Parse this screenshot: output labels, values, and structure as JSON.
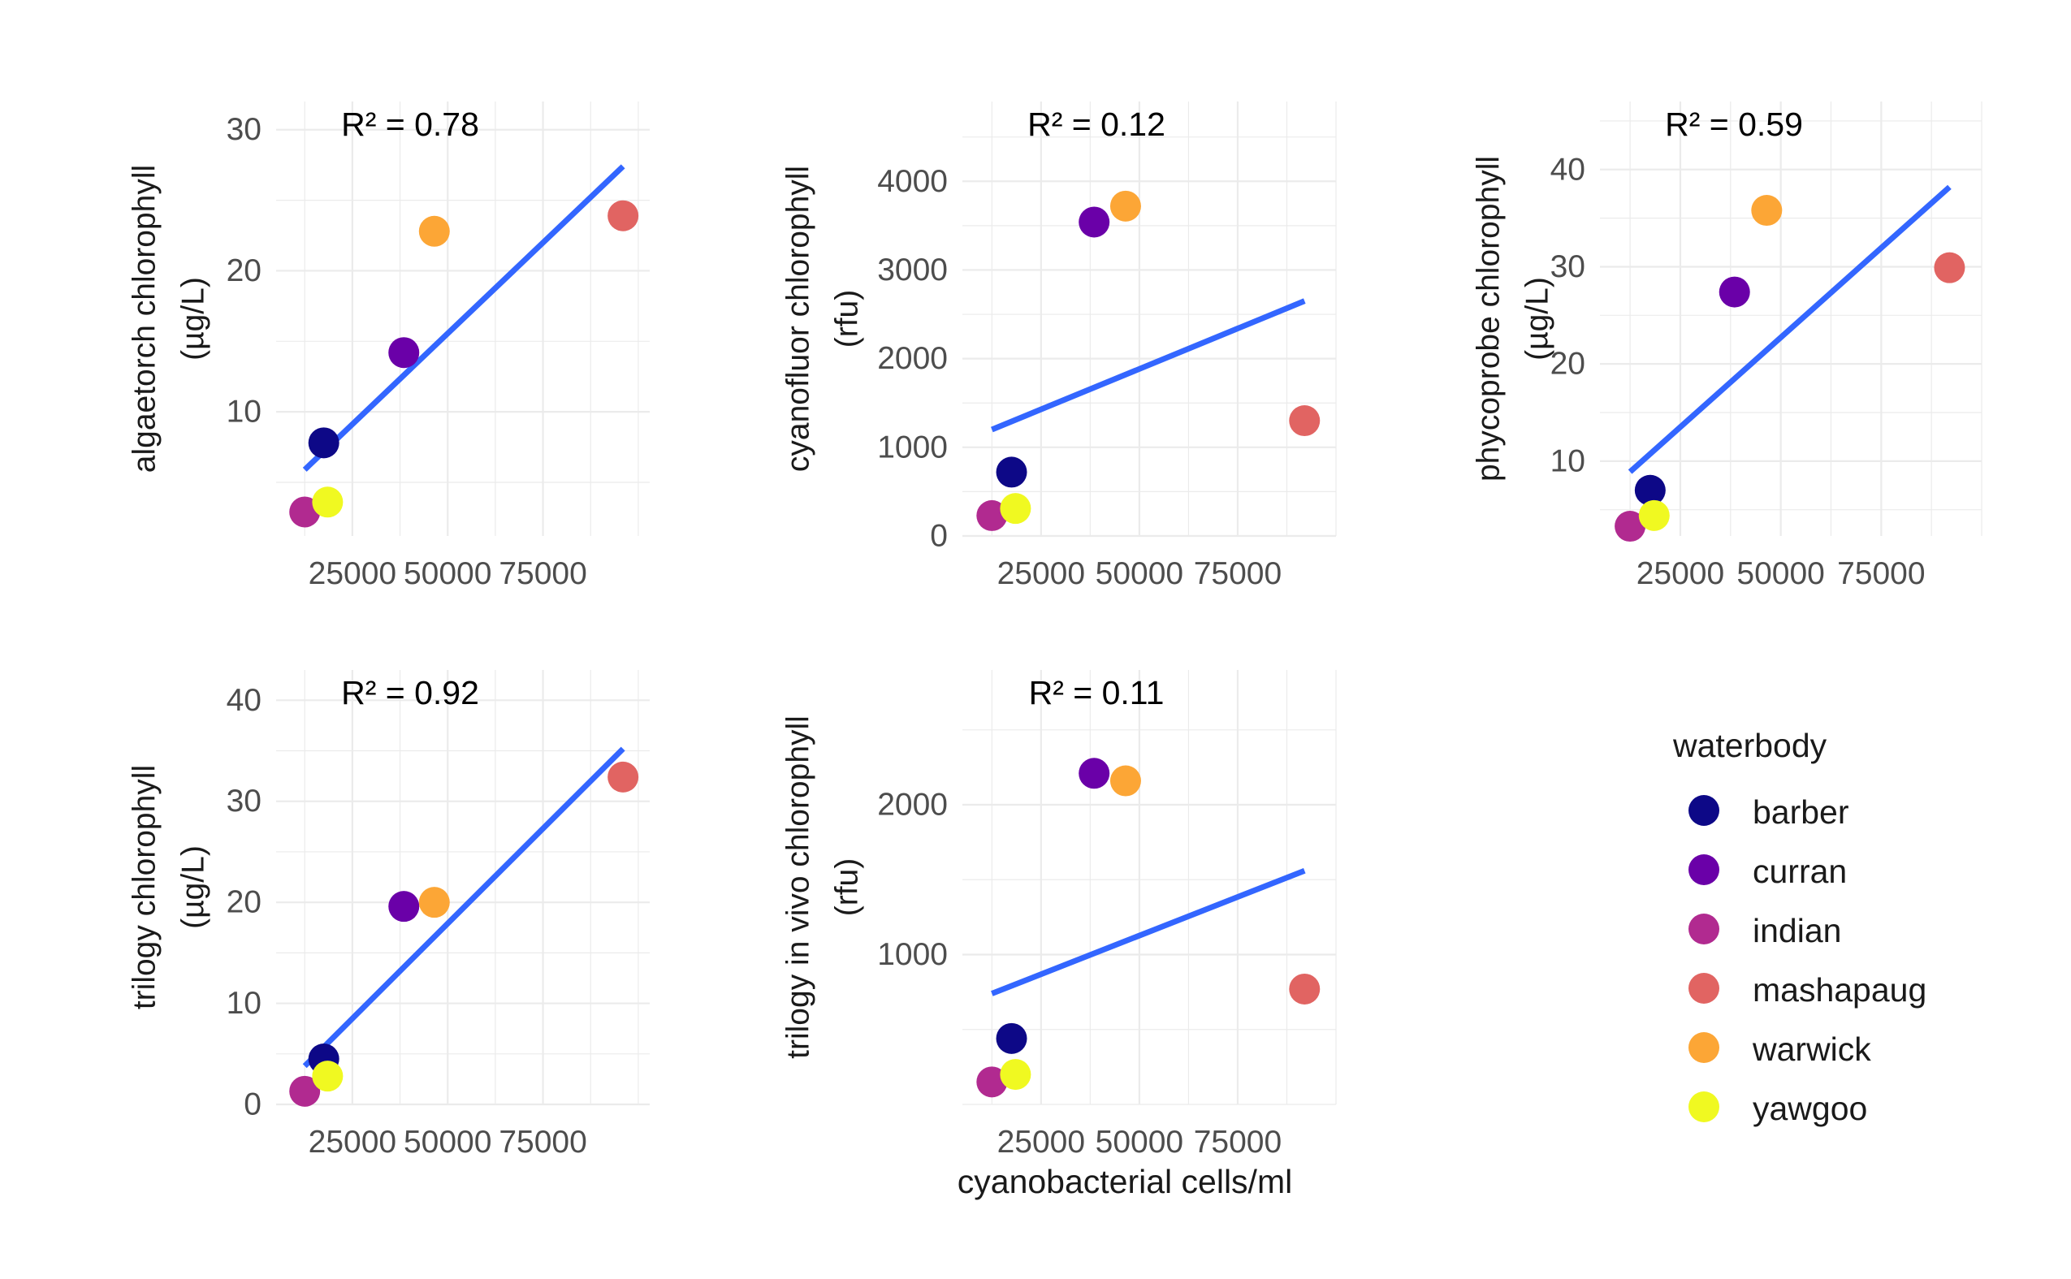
{
  "x_axis_label": "cyanobacterial cells/ml",
  "legend": {
    "title": "waterbody",
    "entries": [
      {
        "name": "barber",
        "color": "#0D0887"
      },
      {
        "name": "curran",
        "color": "#6A00A8"
      },
      {
        "name": "indian",
        "color": "#B12A90"
      },
      {
        "name": "mashapaug",
        "color": "#E16462"
      },
      {
        "name": "warwick",
        "color": "#FCA636"
      },
      {
        "name": "yawgoo",
        "color": "#F0F921"
      }
    ]
  },
  "fit_line_color": "#3366FF",
  "chart_data": [
    {
      "type": "scatter",
      "ylabel": [
        "algaetorch chlorophyll",
        "(µg/L)"
      ],
      "annotation": "R² = 0.78",
      "xlim": [
        5000,
        103000
      ],
      "ylim": [
        1.2,
        32
      ],
      "xticks": [
        25000,
        50000,
        75000
      ],
      "yticks": [
        10,
        20,
        30
      ],
      "points": [
        {
          "group": "barber",
          "x": 17500,
          "y": 7.8
        },
        {
          "group": "curran",
          "x": 38500,
          "y": 14.2
        },
        {
          "group": "indian",
          "x": 12500,
          "y": 2.9
        },
        {
          "group": "mashapaug",
          "x": 96000,
          "y": 23.9
        },
        {
          "group": "warwick",
          "x": 46500,
          "y": 22.8
        },
        {
          "group": "yawgoo",
          "x": 18500,
          "y": 3.6
        }
      ],
      "fit": {
        "x": [
          12500,
          96000
        ],
        "y": [
          5.9,
          27.4
        ]
      }
    },
    {
      "type": "scatter",
      "ylabel": [
        "cyanofluor chlorophyll",
        "(rfu)"
      ],
      "annotation": "R² = 0.12",
      "xlim": [
        5000,
        100000
      ],
      "ylim": [
        0,
        4900
      ],
      "xticks": [
        25000,
        50000,
        75000
      ],
      "yticks": [
        0,
        1000,
        2000,
        3000,
        4000
      ],
      "points": [
        {
          "group": "barber",
          "x": 17500,
          "y": 720
        },
        {
          "group": "curran",
          "x": 38500,
          "y": 3540
        },
        {
          "group": "indian",
          "x": 12500,
          "y": 230
        },
        {
          "group": "mashapaug",
          "x": 92000,
          "y": 1300
        },
        {
          "group": "warwick",
          "x": 46500,
          "y": 3720
        },
        {
          "group": "yawgoo",
          "x": 18500,
          "y": 310
        }
      ],
      "fit": {
        "x": [
          12500,
          92000
        ],
        "y": [
          1200,
          2650
        ]
      }
    },
    {
      "type": "scatter",
      "ylabel": [
        "phycoprobe chlorophyll",
        "(µg/L)"
      ],
      "annotation": "R² = 0.59",
      "xlim": [
        5000,
        100000
      ],
      "ylim": [
        2.3,
        47
      ],
      "xticks": [
        25000,
        50000,
        75000
      ],
      "yticks": [
        10,
        20,
        30,
        40
      ],
      "points": [
        {
          "group": "barber",
          "x": 17500,
          "y": 7.0
        },
        {
          "group": "curran",
          "x": 38500,
          "y": 27.4
        },
        {
          "group": "indian",
          "x": 12500,
          "y": 3.3
        },
        {
          "group": "mashapaug",
          "x": 92000,
          "y": 29.9
        },
        {
          "group": "warwick",
          "x": 46500,
          "y": 35.8
        },
        {
          "group": "yawgoo",
          "x": 18500,
          "y": 4.4
        }
      ],
      "fit": {
        "x": [
          12500,
          92000
        ],
        "y": [
          8.9,
          38.2
        ]
      }
    },
    {
      "type": "scatter",
      "ylabel": [
        "trilogy chlorophyll",
        "(µg/L)"
      ],
      "annotation": "R² = 0.92",
      "xlim": [
        5000,
        103000
      ],
      "ylim": [
        0,
        43
      ],
      "xticks": [
        25000,
        50000,
        75000
      ],
      "yticks": [
        0,
        10,
        20,
        30,
        40
      ],
      "points": [
        {
          "group": "barber",
          "x": 17500,
          "y": 4.5
        },
        {
          "group": "curran",
          "x": 38500,
          "y": 19.6
        },
        {
          "group": "indian",
          "x": 12500,
          "y": 1.3
        },
        {
          "group": "mashapaug",
          "x": 96000,
          "y": 32.4
        },
        {
          "group": "warwick",
          "x": 46500,
          "y": 20.0
        },
        {
          "group": "yawgoo",
          "x": 18500,
          "y": 2.8
        }
      ],
      "fit": {
        "x": [
          12500,
          96000
        ],
        "y": [
          3.8,
          35.2
        ]
      }
    },
    {
      "type": "scatter",
      "ylabel": [
        "trilogy in vivo chlorophyll",
        "(rfu)"
      ],
      "annotation": "R² = 0.11",
      "xlim": [
        5000,
        100000
      ],
      "ylim": [
        0,
        2900
      ],
      "xticks": [
        25000,
        50000,
        75000
      ],
      "yticks": [
        1000,
        2000
      ],
      "points": [
        {
          "group": "barber",
          "x": 17500,
          "y": 440
        },
        {
          "group": "curran",
          "x": 38500,
          "y": 2210
        },
        {
          "group": "indian",
          "x": 12500,
          "y": 150
        },
        {
          "group": "mashapaug",
          "x": 92000,
          "y": 770
        },
        {
          "group": "warwick",
          "x": 46500,
          "y": 2160
        },
        {
          "group": "yawgoo",
          "x": 18500,
          "y": 200
        }
      ],
      "fit": {
        "x": [
          12500,
          92000
        ],
        "y": [
          740,
          1560
        ]
      }
    }
  ]
}
